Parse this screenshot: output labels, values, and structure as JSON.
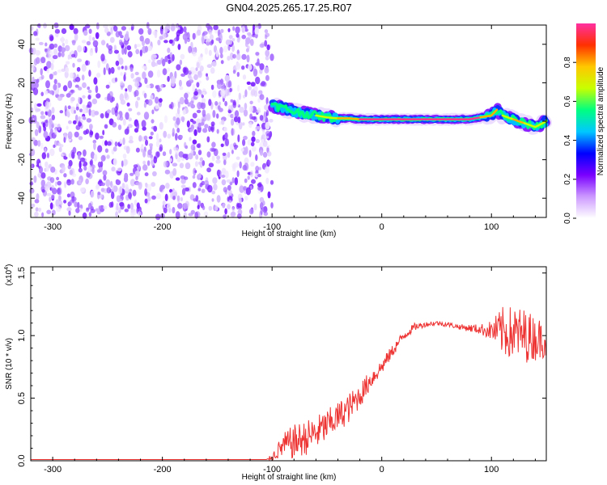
{
  "title": "GN04.2025.265.17.25.R07",
  "chart_data": [
    {
      "type": "heatmap",
      "xlabel": "Height of straight line (km)",
      "ylabel": "Frequency (Hz)",
      "xlim": [
        -320,
        150
      ],
      "ylim": [
        -50,
        50
      ],
      "xticks": [
        -300,
        -200,
        -100,
        0,
        100
      ],
      "xtick_labels": [
        "-300",
        "-200",
        "-100",
        "0",
        "100"
      ],
      "yticks": [
        -40,
        -20,
        0,
        20,
        40
      ],
      "ytick_labels": [
        "-40",
        "-20",
        "0",
        "20",
        "40"
      ],
      "noise_region": {
        "x": [
          -320,
          -100
        ],
        "y": [
          -50,
          50
        ],
        "description": "scattered low-amplitude speckle"
      },
      "signal_track": {
        "x": [
          -100,
          -90,
          -80,
          -70,
          -60,
          -50,
          -40,
          -30,
          -20,
          -10,
          0,
          10,
          20,
          30,
          40,
          50,
          60,
          70,
          80,
          90,
          100,
          105,
          110,
          120,
          130,
          140,
          150
        ],
        "frequency": [
          8,
          7,
          5,
          4,
          3,
          2,
          1.5,
          1.5,
          1,
          1,
          1,
          1,
          1,
          1,
          1,
          1,
          1,
          1,
          1,
          2,
          3,
          6,
          3,
          1,
          -1,
          -3,
          0
        ],
        "amplitude": [
          0.55,
          0.6,
          0.6,
          0.6,
          0.65,
          0.7,
          0.8,
          0.85,
          0.9,
          0.9,
          0.9,
          0.95,
          0.95,
          0.95,
          0.95,
          0.9,
          0.95,
          0.95,
          0.9,
          0.85,
          0.8,
          0.6,
          0.75,
          0.8,
          0.75,
          0.7,
          0.65
        ]
      },
      "colorbar": {
        "label": "Normalized spectral amplitude",
        "range": [
          0,
          1
        ],
        "ticks": [
          0.0,
          0.2,
          0.4,
          0.6,
          0.8
        ],
        "tick_labels": [
          "0.0",
          "0.2",
          "0.4",
          "0.6",
          "0.8"
        ],
        "colors": [
          "#ffffff",
          "#cc99ff",
          "#7a00ff",
          "#0000ff",
          "#00c8ff",
          "#00ff80",
          "#c8ff00",
          "#ffc800",
          "#ff3000",
          "#ff30a0"
        ]
      }
    },
    {
      "type": "line",
      "xlabel": "Height of straight line (km)",
      "ylabel": "SNR (10 * v/v)",
      "y_multiplier": "(x10",
      "y_multiplier_exp": "4",
      "y_multiplier_close": ")",
      "xlim": [
        -320,
        150
      ],
      "ylim": [
        0,
        1.55
      ],
      "xticks": [
        -300,
        -200,
        -100,
        0,
        100
      ],
      "xtick_labels": [
        "-300",
        "-200",
        "-100",
        "0",
        "100"
      ],
      "yticks": [
        0.0,
        0.5,
        1.0,
        1.5
      ],
      "ytick_labels": [
        "0.0",
        "0.5",
        "1.0",
        "1.5"
      ],
      "color": "#ee3333",
      "series": [
        {
          "x": [
            -320,
            -250,
            -200,
            -150,
            -105,
            -100,
            -90,
            -80,
            -70,
            -60,
            -50,
            -40,
            -30,
            -20,
            -10,
            0,
            10,
            20,
            30,
            40,
            50,
            60,
            70,
            80,
            90,
            100,
            110,
            120,
            130,
            140,
            150
          ],
          "y": [
            0.01,
            0.01,
            0.01,
            0.01,
            0.01,
            0.03,
            0.12,
            0.15,
            0.18,
            0.22,
            0.28,
            0.35,
            0.42,
            0.52,
            0.65,
            0.75,
            0.88,
            1.0,
            1.07,
            1.09,
            1.1,
            1.09,
            1.07,
            1.06,
            1.05,
            1.04,
            1.03,
            1.02,
            1.0,
            0.98,
            0.97
          ],
          "noise_amplitude": [
            0,
            0,
            0,
            0,
            0,
            0.03,
            0.1,
            0.14,
            0.14,
            0.14,
            0.13,
            0.12,
            0.12,
            0.1,
            0.08,
            0.06,
            0.05,
            0.04,
            0.03,
            0.02,
            0.02,
            0.02,
            0.02,
            0.03,
            0.04,
            0.08,
            0.2,
            0.22,
            0.22,
            0.18,
            0.14
          ]
        }
      ]
    }
  ]
}
